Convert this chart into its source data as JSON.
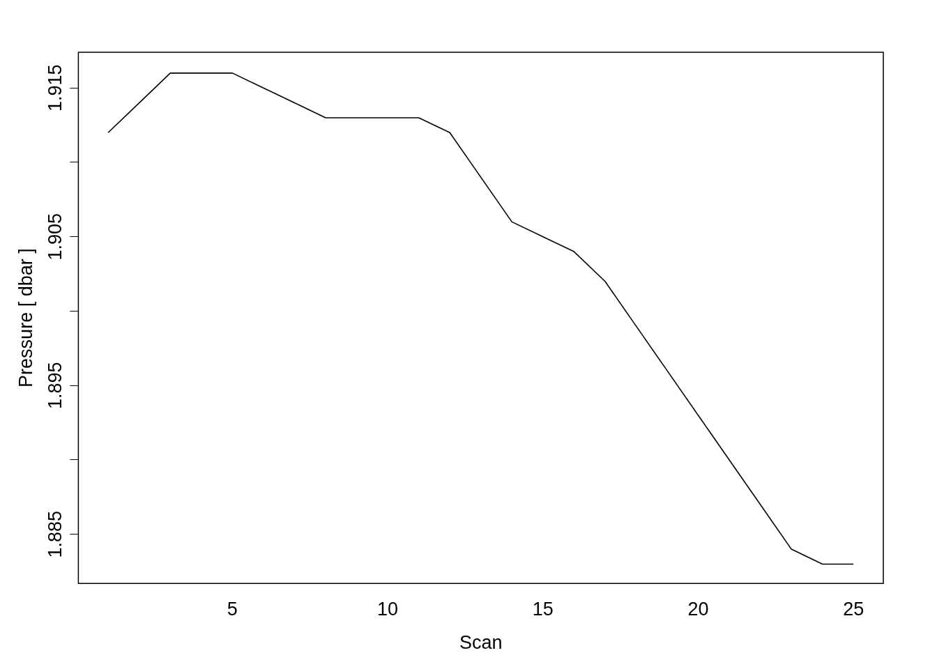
{
  "chart_data": {
    "type": "line",
    "xlabel": "Scan",
    "ylabel": "Pressure [ dbar ]",
    "x": [
      1,
      2,
      3,
      4,
      5,
      6,
      7,
      8,
      9,
      10,
      11,
      12,
      13,
      14,
      15,
      16,
      17,
      18,
      19,
      20,
      21,
      22,
      23,
      24,
      25
    ],
    "series": [
      {
        "color": "#000000",
        "values": [
          1.912,
          1.914,
          1.916,
          1.916,
          1.916,
          1.915,
          1.914,
          1.913,
          1.913,
          1.913,
          1.913,
          1.912,
          1.909,
          1.906,
          1.905,
          1.904,
          1.902,
          1.899,
          1.896,
          1.893,
          1.89,
          1.887,
          1.884,
          1.883,
          1.883
        ]
      }
    ],
    "xlim": [
      0.04,
      25.96
    ],
    "ylim": [
      1.8817,
      1.9174
    ],
    "xticks": [
      5,
      10,
      15,
      20,
      25
    ],
    "yticks": [
      1.885,
      {
        "value": 1.89,
        "label": null
      },
      1.895,
      {
        "value": 1.9,
        "label": null
      },
      1.905,
      {
        "value": 1.91,
        "label": null
      },
      1.915
    ],
    "grid": false,
    "legend": false,
    "marker": "none",
    "line_style": "solid"
  }
}
